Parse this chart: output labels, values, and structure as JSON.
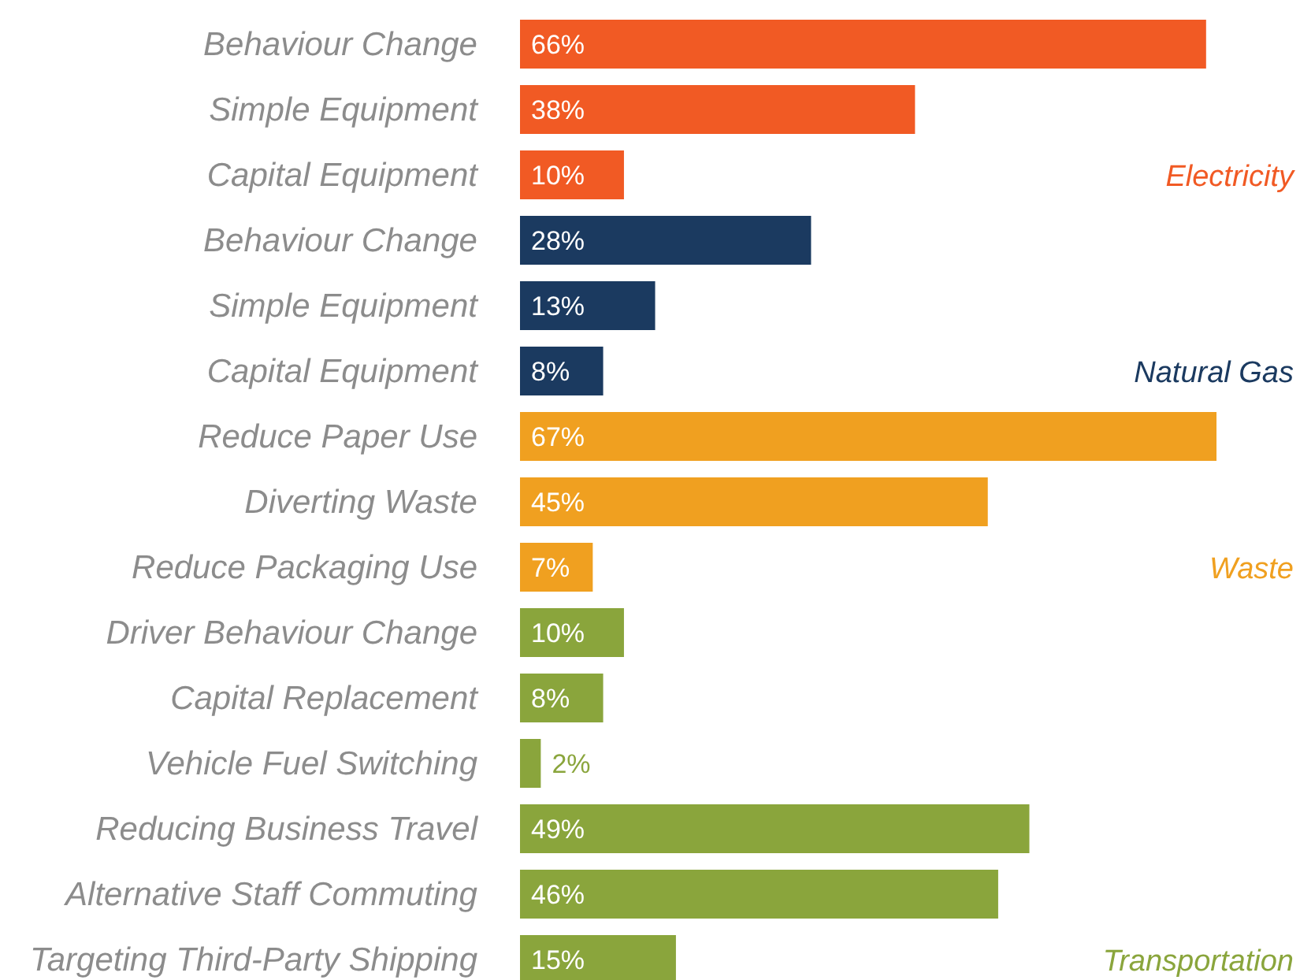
{
  "chart_data": {
    "type": "bar",
    "orientation": "horizontal",
    "categories": [
      "Behaviour Change",
      "Simple Equipment",
      "Capital Equipment",
      "Behaviour Change",
      "Simple Equipment",
      "Capital Equipment",
      "Reduce Paper Use",
      "Diverting Waste",
      "Reduce Packaging Use",
      "Driver Behaviour Change",
      "Capital Replacement",
      "Vehicle Fuel Switching",
      "Reducing Business Travel",
      "Alternative Staff Commuting",
      "Targeting Third-Party Shipping"
    ],
    "series": [
      {
        "name": "Electricity",
        "color": "#f15a24",
        "values": [
          66,
          38,
          10,
          null,
          null,
          null,
          null,
          null,
          null,
          null,
          null,
          null,
          null,
          null,
          null
        ],
        "value_labels": [
          "66%",
          "38%",
          "10%",
          null,
          null,
          null,
          null,
          null,
          null,
          null,
          null,
          null,
          null,
          null,
          null
        ]
      },
      {
        "name": "Natural Gas",
        "color": "#1b3a60",
        "values": [
          null,
          null,
          null,
          28,
          13,
          8,
          null,
          null,
          null,
          null,
          null,
          null,
          null,
          null,
          null
        ],
        "value_labels": [
          null,
          null,
          null,
          "28%",
          "13%",
          "8%",
          null,
          null,
          null,
          null,
          null,
          null,
          null,
          null,
          null
        ]
      },
      {
        "name": "Waste",
        "color": "#f0a020",
        "values": [
          null,
          null,
          null,
          null,
          null,
          null,
          67,
          45,
          7,
          null,
          null,
          null,
          null,
          null,
          null
        ],
        "value_labels": [
          null,
          null,
          null,
          null,
          null,
          null,
          "67%",
          "45%",
          "7%",
          null,
          null,
          null,
          null,
          null,
          null
        ]
      },
      {
        "name": "Transportation",
        "color": "#8aa53c",
        "values": [
          null,
          null,
          null,
          null,
          null,
          null,
          null,
          null,
          null,
          10,
          8,
          2,
          49,
          46,
          15
        ],
        "value_labels": [
          null,
          null,
          null,
          null,
          null,
          null,
          null,
          null,
          null,
          "10%",
          "8%",
          "2%",
          "49%",
          "46%",
          "15%"
        ]
      }
    ]
  }
}
